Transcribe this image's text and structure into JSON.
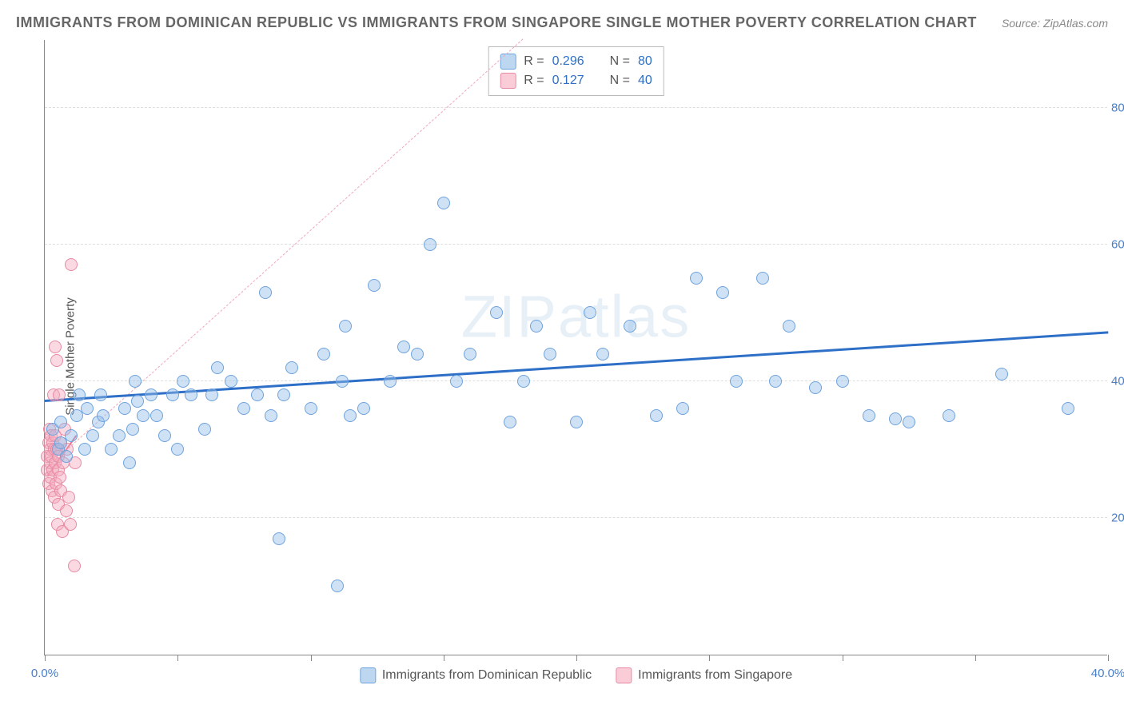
{
  "title": "IMMIGRANTS FROM DOMINICAN REPUBLIC VS IMMIGRANTS FROM SINGAPORE SINGLE MOTHER POVERTY CORRELATION CHART",
  "source": "Source: ZipAtlas.com",
  "ylabel": "Single Mother Poverty",
  "watermark": "ZIPatlas",
  "chart": {
    "type": "scatter",
    "background_color": "#ffffff",
    "grid_color": "#dddddd",
    "axis_color": "#888888",
    "xlim": [
      0,
      40
    ],
    "ylim": [
      0,
      90
    ],
    "yticks": [
      20,
      40,
      60,
      80
    ],
    "ytick_labels": [
      "20.0%",
      "40.0%",
      "60.0%",
      "80.0%"
    ],
    "xticks": [
      0,
      5,
      10,
      15,
      20,
      25,
      30,
      35,
      40
    ],
    "xtick_labels_shown": {
      "0": "0.0%",
      "40": "40.0%"
    },
    "marker_size": 16,
    "series": [
      {
        "name": "Immigrants from Dominican Republic",
        "color_fill": "rgba(147,188,232,0.45)",
        "color_stroke": "#6fa3dd",
        "trend_color": "#2e6fc7",
        "trend_style": "solid",
        "trend_width": 2.5,
        "trend_y_at_x0": 37,
        "trend_y_at_x40": 47,
        "R": "0.296",
        "N": "80",
        "points": [
          [
            0.3,
            33
          ],
          [
            0.5,
            30
          ],
          [
            0.6,
            34
          ],
          [
            0.6,
            31
          ],
          [
            0.8,
            29
          ],
          [
            1.0,
            32
          ],
          [
            1.2,
            35
          ],
          [
            1.3,
            38
          ],
          [
            1.5,
            30
          ],
          [
            1.6,
            36
          ],
          [
            1.8,
            32
          ],
          [
            2.0,
            34
          ],
          [
            2.1,
            38
          ],
          [
            2.2,
            35
          ],
          [
            2.5,
            30
          ],
          [
            2.8,
            32
          ],
          [
            3.0,
            36
          ],
          [
            3.2,
            28
          ],
          [
            3.3,
            33
          ],
          [
            3.4,
            40
          ],
          [
            3.5,
            37
          ],
          [
            3.7,
            35
          ],
          [
            4.0,
            38
          ],
          [
            4.2,
            35
          ],
          [
            4.5,
            32
          ],
          [
            4.8,
            38
          ],
          [
            5.0,
            30
          ],
          [
            5.2,
            40
          ],
          [
            5.5,
            38
          ],
          [
            6.0,
            33
          ],
          [
            6.3,
            38
          ],
          [
            6.5,
            42
          ],
          [
            7.0,
            40
          ],
          [
            7.5,
            36
          ],
          [
            8.0,
            38
          ],
          [
            8.3,
            53
          ],
          [
            8.5,
            35
          ],
          [
            8.8,
            17
          ],
          [
            9.0,
            38
          ],
          [
            9.3,
            42
          ],
          [
            10.0,
            36
          ],
          [
            10.5,
            44
          ],
          [
            11.0,
            10
          ],
          [
            11.2,
            40
          ],
          [
            11.3,
            48
          ],
          [
            11.5,
            35
          ],
          [
            12.0,
            36
          ],
          [
            12.4,
            54
          ],
          [
            13.0,
            40
          ],
          [
            13.5,
            45
          ],
          [
            14.0,
            44
          ],
          [
            14.5,
            60
          ],
          [
            15.0,
            66
          ],
          [
            15.5,
            40
          ],
          [
            16.0,
            44
          ],
          [
            17.0,
            50
          ],
          [
            17.5,
            34
          ],
          [
            18.0,
            40
          ],
          [
            18.5,
            48
          ],
          [
            19.0,
            44
          ],
          [
            20.0,
            34
          ],
          [
            20.5,
            50
          ],
          [
            21.0,
            44
          ],
          [
            22.0,
            48
          ],
          [
            23.0,
            35
          ],
          [
            24.0,
            36
          ],
          [
            24.5,
            55
          ],
          [
            25.5,
            53
          ],
          [
            26.0,
            40
          ],
          [
            27.0,
            55
          ],
          [
            27.5,
            40
          ],
          [
            28.0,
            48
          ],
          [
            29.0,
            39
          ],
          [
            30.0,
            40
          ],
          [
            31.0,
            35
          ],
          [
            32.0,
            34.5
          ],
          [
            32.5,
            34
          ],
          [
            34.0,
            35
          ],
          [
            36.0,
            41
          ],
          [
            38.5,
            36
          ]
        ]
      },
      {
        "name": "Immigrants from Singapore",
        "color_fill": "rgba(245,170,190,0.45)",
        "color_stroke": "#e88aa3",
        "trend_color_solid": "#e56d8c",
        "trend_color_dash": "#f2a8b9",
        "trend_dash_y_at_x0": 27,
        "trend_dash_y_at_xmax": 90,
        "trend_dash_xmax": 18,
        "trend_solid_x0": 0.1,
        "trend_solid_y0": 26,
        "trend_solid_x1": 1.2,
        "trend_solid_y1": 32,
        "R": "0.127",
        "N": "40",
        "points": [
          [
            0.1,
            27
          ],
          [
            0.1,
            29
          ],
          [
            0.15,
            31
          ],
          [
            0.15,
            25
          ],
          [
            0.18,
            33
          ],
          [
            0.2,
            28
          ],
          [
            0.2,
            30
          ],
          [
            0.22,
            26
          ],
          [
            0.25,
            32
          ],
          [
            0.25,
            29
          ],
          [
            0.28,
            24
          ],
          [
            0.3,
            31
          ],
          [
            0.3,
            27
          ],
          [
            0.32,
            38
          ],
          [
            0.35,
            30
          ],
          [
            0.35,
            23
          ],
          [
            0.38,
            28
          ],
          [
            0.4,
            32
          ],
          [
            0.4,
            45
          ],
          [
            0.42,
            25
          ],
          [
            0.45,
            30
          ],
          [
            0.45,
            43
          ],
          [
            0.48,
            19
          ],
          [
            0.5,
            27
          ],
          [
            0.5,
            22
          ],
          [
            0.52,
            29
          ],
          [
            0.55,
            38
          ],
          [
            0.58,
            26
          ],
          [
            0.6,
            31
          ],
          [
            0.6,
            24
          ],
          [
            0.65,
            18
          ],
          [
            0.7,
            28
          ],
          [
            0.75,
            33
          ],
          [
            0.8,
            21
          ],
          [
            0.85,
            30
          ],
          [
            0.9,
            23
          ],
          [
            0.95,
            19
          ],
          [
            1.0,
            57
          ],
          [
            1.1,
            13
          ],
          [
            1.15,
            28
          ]
        ]
      }
    ]
  },
  "legend_top": {
    "rows": [
      {
        "swatch": "blue",
        "r_label": "R =",
        "r_val": "0.296",
        "n_label": "N =",
        "n_val": "80"
      },
      {
        "swatch": "pink",
        "r_label": "R =",
        "r_val": "0.127",
        "n_label": "N =",
        "n_val": "40"
      }
    ]
  },
  "legend_bottom": {
    "items": [
      {
        "swatch": "blue",
        "label": "Immigrants from Dominican Republic"
      },
      {
        "swatch": "pink",
        "label": "Immigrants from Singapore"
      }
    ]
  }
}
